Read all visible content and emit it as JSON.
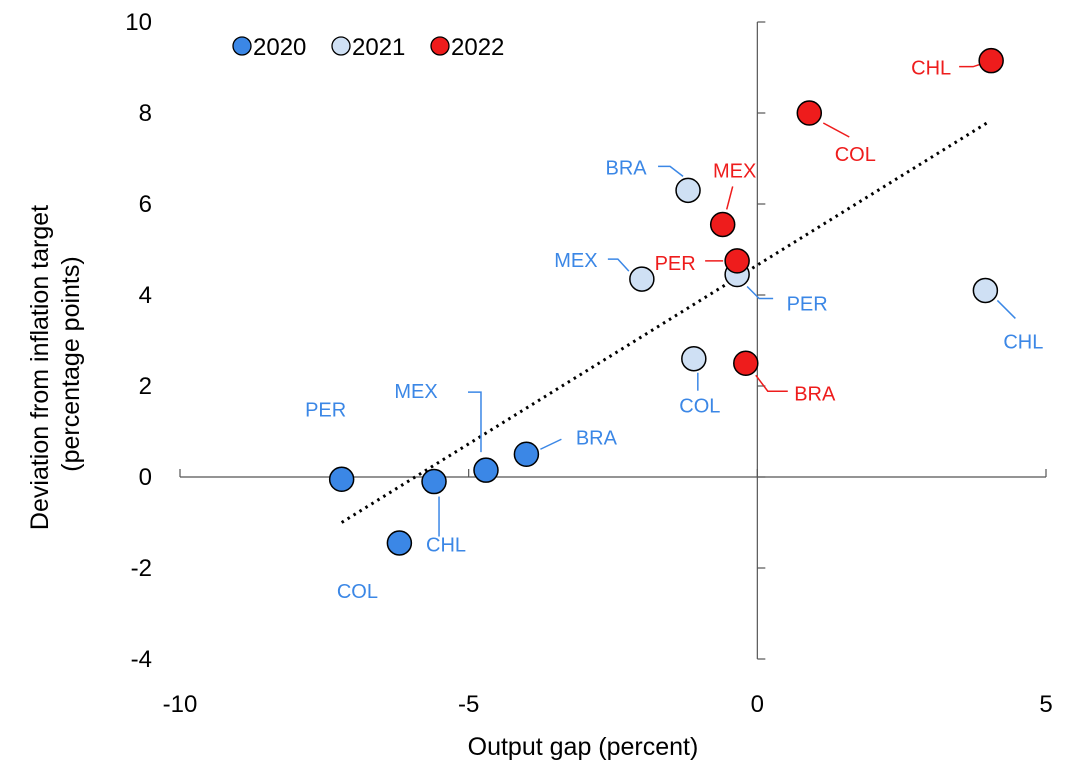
{
  "chart_data": {
    "type": "scatter",
    "title": "",
    "xlabel": "Output gap (percent)",
    "ylabel": [
      "Deviation from inflation target",
      "(percentage points)"
    ],
    "xlim": [
      -10,
      5
    ],
    "ylim": [
      -4,
      10
    ],
    "xticks": [
      -10,
      -5,
      0,
      5
    ],
    "yticks": [
      -4,
      -2,
      0,
      2,
      4,
      6,
      8,
      10
    ],
    "grid": false,
    "legend_position": "top-left",
    "series": [
      {
        "name": "2020",
        "color": "#3b87e6",
        "label_color": "#3b87e6",
        "points": [
          {
            "label": "PER",
            "x": -7.2,
            "y": -0.05
          },
          {
            "label": "COL",
            "x": -6.2,
            "y": -1.45
          },
          {
            "label": "CHL",
            "x": -5.6,
            "y": -0.1
          },
          {
            "label": "MEX",
            "x": -4.7,
            "y": 0.15
          },
          {
            "label": "BRA",
            "x": -4.0,
            "y": 0.5
          }
        ]
      },
      {
        "name": "2021",
        "color": "#cfe0f4",
        "label_color": "#3b87e6",
        "points": [
          {
            "label": "BRA",
            "x": -1.2,
            "y": 6.3
          },
          {
            "label": "MEX",
            "x": -2.0,
            "y": 4.35
          },
          {
            "label": "PER",
            "x": -0.35,
            "y": 4.45
          },
          {
            "label": "COL",
            "x": -1.1,
            "y": 2.6
          },
          {
            "label": "CHL",
            "x": 3.95,
            "y": 4.1
          }
        ]
      },
      {
        "name": "2022",
        "color": "#ee1c1c",
        "label_color": "#ee1c1c",
        "points": [
          {
            "label": "CHL",
            "x": 4.05,
            "y": 9.15
          },
          {
            "label": "COL",
            "x": 0.9,
            "y": 8.0
          },
          {
            "label": "MEX",
            "x": -0.6,
            "y": 5.55
          },
          {
            "label": "PER",
            "x": -0.35,
            "y": 4.75
          },
          {
            "label": "BRA",
            "x": -0.2,
            "y": 2.5
          }
        ]
      }
    ],
    "trendline": {
      "style": "dotted",
      "color": "#000000",
      "x": [
        -7.2,
        4.0
      ],
      "y": [
        -1.0,
        7.8
      ]
    }
  }
}
